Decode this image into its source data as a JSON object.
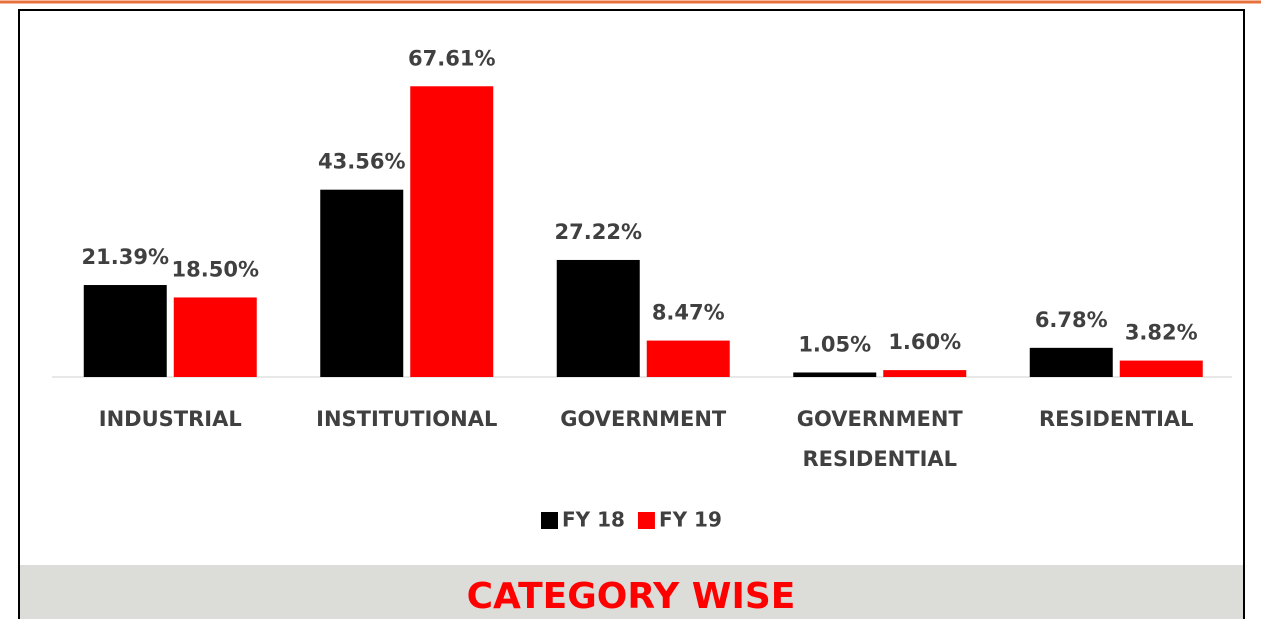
{
  "chart_data": {
    "type": "bar",
    "title": "CATEGORY WISE",
    "categories": [
      "INDUSTRIAL",
      "INSTITUTIONAL",
      "GOVERNMENT",
      "GOVERNMENT RESIDENTIAL",
      "RESIDENTIAL"
    ],
    "series": [
      {
        "name": "FY 18",
        "color": "#000000",
        "values": [
          21.39,
          43.56,
          27.22,
          1.05,
          6.78
        ],
        "value_labels": [
          "21.39%",
          "43.56%",
          "27.22%",
          "1.05%",
          "6.78%"
        ]
      },
      {
        "name": "FY 19",
        "color": "#ff0000",
        "values": [
          18.5,
          67.61,
          8.47,
          1.6,
          3.82
        ],
        "value_labels": [
          "18.50%",
          "67.61%",
          "8.47%",
          "1.60%",
          "3.82%"
        ]
      }
    ],
    "legend": "bottom"
  }
}
